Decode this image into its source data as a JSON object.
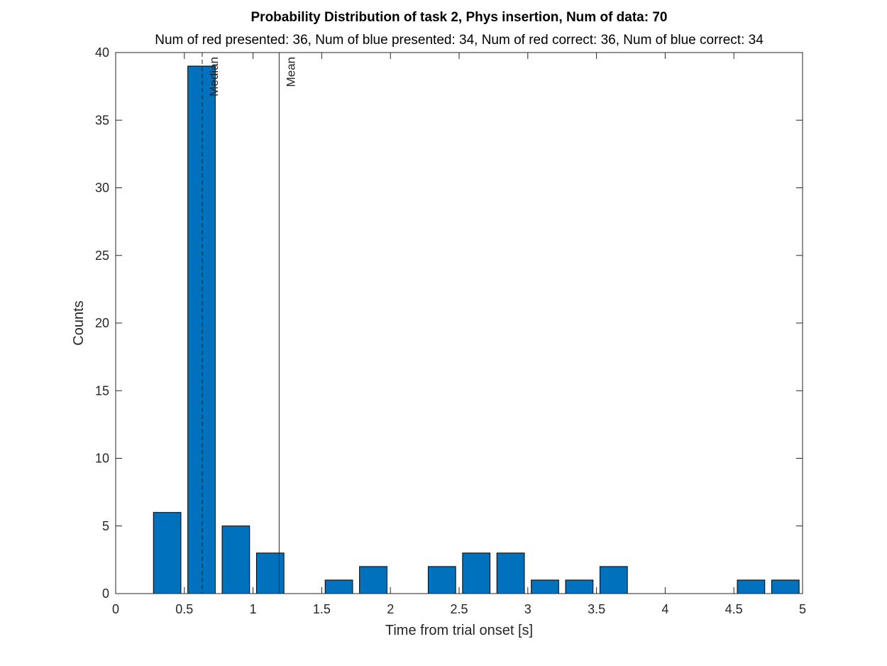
{
  "chart_data": {
    "type": "bar",
    "title": "Probability Distribution of task 2, Phys insertion, Num of data: 70",
    "subtitle": "Num of red presented: 36, Num of blue presented: 34, Num of red correct: 36, Num of blue correct: 34",
    "xlabel": "Time from trial onset [s]",
    "ylabel": "Counts",
    "xlim": [
      0,
      5
    ],
    "ylim": [
      0,
      40
    ],
    "xticks": [
      "0",
      "0.5",
      "1",
      "1.5",
      "2",
      "2.5",
      "3",
      "3.5",
      "4",
      "4.5",
      "5"
    ],
    "yticks": [
      "0",
      "5",
      "10",
      "15",
      "20",
      "25",
      "30",
      "35",
      "40"
    ],
    "bin_width": 0.25,
    "bin_centers": [
      0.375,
      0.625,
      0.875,
      1.125,
      1.625,
      1.875,
      2.375,
      2.625,
      2.875,
      3.125,
      3.375,
      3.625,
      4.625,
      4.875
    ],
    "values": [
      6,
      39,
      5,
      3,
      1,
      2,
      2,
      3,
      3,
      1,
      1,
      2,
      1,
      1
    ],
    "bar_color": "#0072BD",
    "reference_lines": [
      {
        "label": "Median",
        "x": 0.63,
        "style": "dashed"
      },
      {
        "label": "Mean",
        "x": 1.19,
        "style": "solid"
      }
    ],
    "grid": false
  }
}
